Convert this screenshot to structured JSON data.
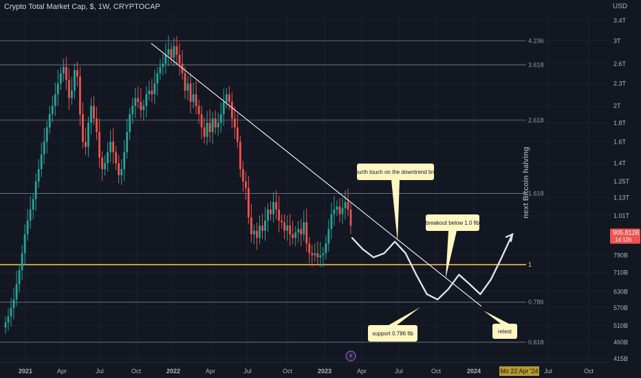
{
  "header": {
    "title": "Crypto Total Market Cap, $, 1W, CRYPTOCAP",
    "currency": "USD"
  },
  "colors": {
    "background": "#131722",
    "up": "#26a69a",
    "down": "#ef5350",
    "fib_line": "#9598a1",
    "fib_one": "#f7d358",
    "trendline": "#ffffff",
    "annotation_bg": "#fff6c2",
    "price_badge": "#ef5350"
  },
  "chart_data": {
    "type": "candlestick",
    "interval": "1W",
    "y_scale": "log",
    "x_ticks": [
      "2021",
      "Apr",
      "Jul",
      "Oct",
      "2022",
      "Apr",
      "Jul",
      "Oct",
      "2023",
      "Apr",
      "Jul",
      "Oct",
      "2024",
      "Jul",
      "Oct"
    ],
    "y_ticks": [
      "3.4T",
      "3T",
      "2.6T",
      "2.3T",
      "2T",
      "1.8T",
      "1.6T",
      "1.4T",
      "1.25T",
      "1.13T",
      "1.01T",
      "790B",
      "710B",
      "630B",
      "570B",
      "510B",
      "460B",
      "415B"
    ],
    "fib_levels": [
      {
        "label": "4.236",
        "value": 3.0
      },
      {
        "label": "3.618",
        "value": 2.58
      },
      {
        "label": "2.618",
        "value": 1.83
      },
      {
        "label": "1.618",
        "value": 1.16
      },
      {
        "label": "1",
        "value": 0.745
      },
      {
        "label": "0.786",
        "value": 0.59
      },
      {
        "label": "0.618",
        "value": 0.46
      }
    ],
    "current_price": "905.812B",
    "countdown": "1d 12h",
    "date_badge": "Mo 22 Apr '24",
    "vertical_label": "next Bitcoin halving",
    "annotations": [
      "fourth touch on the downtrend line",
      "breakout below 1.0 fib",
      "support 0.786 fib",
      "retest"
    ],
    "candles_close": [
      0.52,
      0.54,
      0.57,
      0.6,
      0.66,
      0.72,
      0.8,
      0.9,
      0.98,
      1.05,
      1.12,
      1.25,
      1.35,
      1.48,
      1.6,
      1.75,
      1.9,
      2.0,
      2.15,
      2.3,
      2.45,
      2.55,
      2.35,
      2.1,
      2.2,
      2.5,
      2.4,
      1.9,
      1.6,
      1.55,
      1.8,
      2.0,
      1.85,
      1.7,
      1.45,
      1.35,
      1.4,
      1.5,
      1.6,
      1.5,
      1.4,
      1.3,
      1.35,
      1.5,
      1.7,
      1.9,
      2.0,
      2.1,
      2.05,
      1.95,
      2.0,
      2.15,
      2.2,
      2.15,
      2.3,
      2.45,
      2.55,
      2.6,
      2.75,
      2.85,
      2.7,
      2.9,
      2.75,
      2.6,
      2.45,
      2.2,
      2.3,
      2.05,
      2.15,
      2.0,
      1.9,
      1.75,
      1.65,
      1.8,
      1.7,
      1.85,
      1.75,
      1.8,
      1.9,
      2.05,
      2.15,
      2.05,
      1.85,
      1.75,
      1.6,
      1.35,
      1.25,
      1.2,
      1.0,
      0.9,
      0.92,
      0.88,
      0.95,
      0.92,
      0.98,
      1.05,
      1.02,
      1.1,
      1.05,
      0.98,
      0.97,
      0.92,
      0.95,
      0.9,
      0.88,
      0.91,
      0.93,
      0.9,
      0.97,
      0.85,
      0.8,
      0.79,
      0.8,
      0.78,
      0.79,
      0.8,
      0.85,
      0.93,
      1.02,
      1.05,
      1.07,
      1.02,
      1.06,
      1.1,
      1.05,
      0.95
    ],
    "projection_path": [
      0.88,
      0.82,
      0.78,
      0.8,
      0.86,
      0.8,
      0.7,
      0.62,
      0.6,
      0.64,
      0.7,
      0.66,
      0.62,
      0.68,
      0.78,
      0.9
    ]
  }
}
